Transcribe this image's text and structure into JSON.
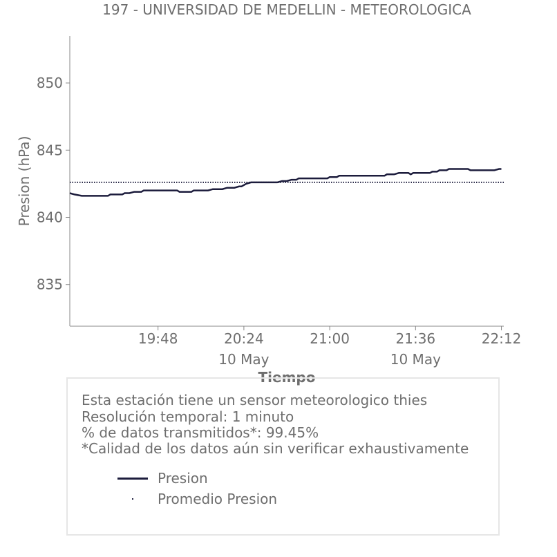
{
  "chart_data": {
    "type": "line",
    "title": "197 - UNIVERSIDAD DE MEDELLIN - METEOROLOGICA",
    "xlabel": "Tiempo",
    "ylabel": "Presion (hPa)",
    "ylim": [
      831.9,
      853.5
    ],
    "xlim": [
      "19:11",
      "22:13"
    ],
    "yticks": [
      835,
      840,
      845,
      850
    ],
    "xticks": [
      {
        "time": "19:48",
        "date": ""
      },
      {
        "time": "20:24",
        "date": "10 May"
      },
      {
        "time": "21:00",
        "date": ""
      },
      {
        "time": "21:36",
        "date": "10 May"
      },
      {
        "time": "22:12",
        "date": ""
      }
    ],
    "grid": false,
    "series": [
      {
        "name": "Presion",
        "color": "#1c1c3c",
        "style": "solid",
        "points": [
          [
            "19:11",
            841.8
          ],
          [
            "19:13",
            841.7
          ],
          [
            "19:16",
            841.6
          ],
          [
            "19:27",
            841.6
          ],
          [
            "19:28",
            841.7
          ],
          [
            "19:33",
            841.7
          ],
          [
            "19:34",
            841.8
          ],
          [
            "19:36",
            841.8
          ],
          [
            "19:38",
            841.9
          ],
          [
            "19:41",
            841.9
          ],
          [
            "19:42",
            842.0
          ],
          [
            "19:56",
            842.0
          ],
          [
            "19:57",
            841.9
          ],
          [
            "20:02",
            841.9
          ],
          [
            "20:03",
            842.0
          ],
          [
            "20:09",
            842.0
          ],
          [
            "20:11",
            842.1
          ],
          [
            "20:15",
            842.1
          ],
          [
            "20:17",
            842.2
          ],
          [
            "20:20",
            842.2
          ],
          [
            "20:22",
            842.3
          ],
          [
            "20:23",
            842.3
          ],
          [
            "20:25",
            842.5
          ],
          [
            "20:27",
            842.6
          ],
          [
            "20:38",
            842.6
          ],
          [
            "20:40",
            842.7
          ],
          [
            "20:42",
            842.7
          ],
          [
            "20:44",
            842.8
          ],
          [
            "20:46",
            842.8
          ],
          [
            "20:47",
            842.9
          ],
          [
            "20:59",
            842.9
          ],
          [
            "21:00",
            843.0
          ],
          [
            "21:03",
            843.0
          ],
          [
            "21:04",
            843.1
          ],
          [
            "21:17",
            843.1
          ],
          [
            "21:18",
            843.1
          ],
          [
            "21:19",
            843.1
          ],
          [
            "21:23",
            843.1
          ],
          [
            "21:24",
            843.2
          ],
          [
            "21:27",
            843.2
          ],
          [
            "21:29",
            843.3
          ],
          [
            "21:33",
            843.3
          ],
          [
            "21:34",
            843.2
          ],
          [
            "21:35",
            843.3
          ],
          [
            "21:42",
            843.3
          ],
          [
            "21:43",
            843.4
          ],
          [
            "21:45",
            843.4
          ],
          [
            "21:46",
            843.5
          ],
          [
            "21:49",
            843.5
          ],
          [
            "21:50",
            843.6
          ],
          [
            "21:58",
            843.6
          ],
          [
            "21:59",
            843.5
          ],
          [
            "22:09",
            843.5
          ],
          [
            "22:11",
            843.6
          ],
          [
            "22:12",
            843.6
          ]
        ]
      },
      {
        "name": "Promedio Presion",
        "color": "#1c1c3c",
        "style": "dotted",
        "points": [
          [
            "19:11",
            842.6
          ],
          [
            "22:13",
            842.6
          ]
        ]
      }
    ]
  },
  "info": {
    "lines": [
      "Esta estación tiene un sensor meteorologico thies",
      "Resolución temporal: 1 minuto",
      "% de datos transmitidos*: 99.45%",
      "*Calidad de los datos aún sin verificar exhaustivamente"
    ],
    "legend": {
      "line_label": "Presion",
      "dot_label": "Promedio Presion"
    }
  }
}
